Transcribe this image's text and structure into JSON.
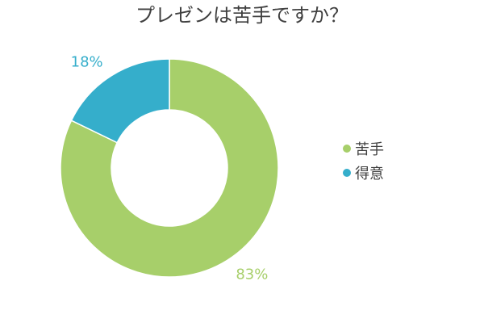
{
  "chart_data": {
    "type": "pie",
    "title": "プレゼンは苦手ですか？",
    "categories": [
      "苦手",
      "得意"
    ],
    "values": [
      83,
      18
    ],
    "value_labels": [
      "83%",
      "18%"
    ],
    "colors": [
      "#A7CF6A",
      "#35AECB"
    ],
    "donut": true,
    "legend_placement": "right"
  }
}
